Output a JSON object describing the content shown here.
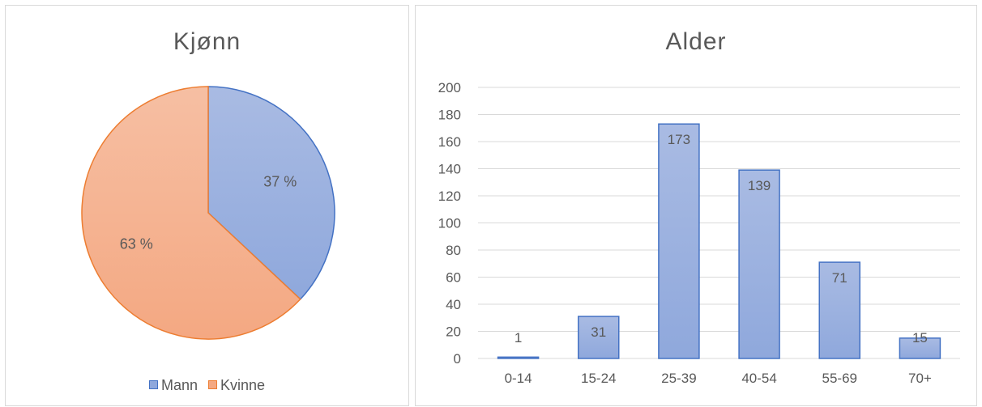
{
  "chart_data": [
    {
      "type": "pie",
      "title": "Kjønn",
      "categories": [
        "Mann",
        "Kvinne"
      ],
      "values": [
        37,
        63
      ],
      "value_labels": [
        "37 %",
        "63 %"
      ],
      "colors": [
        "#8FA8DC",
        "#F4A882"
      ],
      "stroke_colors": [
        "#4472C4",
        "#ED7D31"
      ],
      "legend_position": "bottom"
    },
    {
      "type": "bar",
      "title": "Alder",
      "categories": [
        "0-14",
        "15-24",
        "25-39",
        "40-54",
        "55-69",
        "70+"
      ],
      "values": [
        1,
        31,
        173,
        139,
        71,
        15
      ],
      "ylim": [
        0,
        200
      ],
      "yticks": [
        0,
        20,
        40,
        60,
        80,
        100,
        120,
        140,
        160,
        180,
        200
      ],
      "grid": true,
      "bar_color": "#8FA8DC",
      "bar_stroke": "#4472C4",
      "legend_position": "none"
    }
  ]
}
